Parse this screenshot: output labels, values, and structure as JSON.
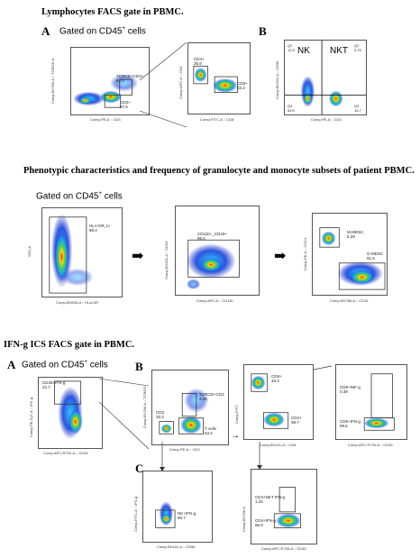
{
  "section1": {
    "title": "Lymphocytes FACS gate in PBMC.",
    "panel_a": "A",
    "panel_b": "B",
    "gated": "Gated on CD45",
    "gated_sup": "+",
    "gated_tail": " cells",
    "plot1": {
      "x": "Comp-PE-A :: CD3",
      "y": "Comp-BV786-A :: TCRGD-A",
      "g1": "TCRGD+CD3+",
      "v1": "8.73",
      "g2": "CD3+",
      "v2": "57.5"
    },
    "plot2": {
      "x": "Comp-FITC-A :: CD8",
      "y": "Comp-APC-A :: CD4",
      "g1": "CD4+",
      "v1": "25.8",
      "g2": "CD8+",
      "v2": "33.3"
    },
    "plot3": {
      "x": "Comp-PE-A :: CD3",
      "y": "Comp-BV421-A :: CD56",
      "nk": "NK",
      "nkt": "NKT",
      "q1": "Q1",
      "q1v": "12.5",
      "q2": "Q2",
      "q2v": "4.75",
      "q3": "Q3",
      "q3v": "16.7",
      "q4": "Q4",
      "q4v": "63.5"
    }
  },
  "section2": {
    "title": "Phenotypic characteristics and frequency of granulocyte and monocyte subsets of patient PBMC.",
    "gated": "Gated on CD45",
    "gated_sup": "+",
    "gated_tail": " cells",
    "plot1": {
      "x": "Comp-BV605-A :: HLA-DR",
      "y": "SSC-A",
      "g1": "HLA-DR_lo",
      "v1": "98.4"
    },
    "plot2": {
      "x": "Comp-APC-A :: CD11b",
      "y": "Comp-BV421-A :: CD33",
      "g1": "CD11b+_CD33+",
      "v1": "95.5"
    },
    "plot3": {
      "x": "Comp-BV786-A :: CD15",
      "y": "Comp-PE-A :: CD14",
      "g1": "M-MDSC",
      "v1": "5.29",
      "g2": "G-MDSC",
      "v2": "91.5"
    }
  },
  "section3": {
    "title": "IFN-g ICS FACS gate in PBMC.",
    "panel_a": "A",
    "panel_b": "B",
    "panel_c": "C",
    "gated": "Gated on CD45",
    "gated_sup": "+",
    "gated_tail": " cells",
    "plotA": {
      "x": "Comp-APC-R700-A :: CD45",
      "y": "Comp-PE-Cy7-A :: IFN-g",
      "g1": "CD45+IFN-g",
      "v1": "22.7"
    },
    "plotB1": {
      "x": "Comp-PE-A :: CD3",
      "y": "Comp-BV786-A :: TCRGD",
      "g1": "TCRGD+CD3",
      "v1": "4.46",
      "g2": "CD3",
      "v2": "33.3",
      "g3": "T cells",
      "v3": "53.4"
    },
    "plotB2": {
      "x": "Comp-BV421-A :: CD8",
      "y": "Comp-FITC",
      "g1": "CD8+",
      "v1": "48.3",
      "g2": "CD4+",
      "v2": "38.7"
    },
    "plotB3": {
      "x": "Comp-APC-R700-A :: CD45",
      "y": "",
      "g1": "CD8+INF-g",
      "v1": "0.39",
      "g2": "CD8+IFN-g",
      "v2": "99.6"
    },
    "plotC1": {
      "x": "Comp-BV421-A :: CD56",
      "y": "Comp-FITC-A :: IFN-g",
      "g1": "NK+IFN-g",
      "v1": "96.7"
    },
    "plotC2": {
      "x": "Comp-APC-R700-A :: CD45",
      "y": "Comp-BV786-A",
      "g1": "CD4+NKT IFN-g",
      "v1": "1.25",
      "g2": "CD4+IFN-g",
      "v2": "96.9"
    }
  }
}
